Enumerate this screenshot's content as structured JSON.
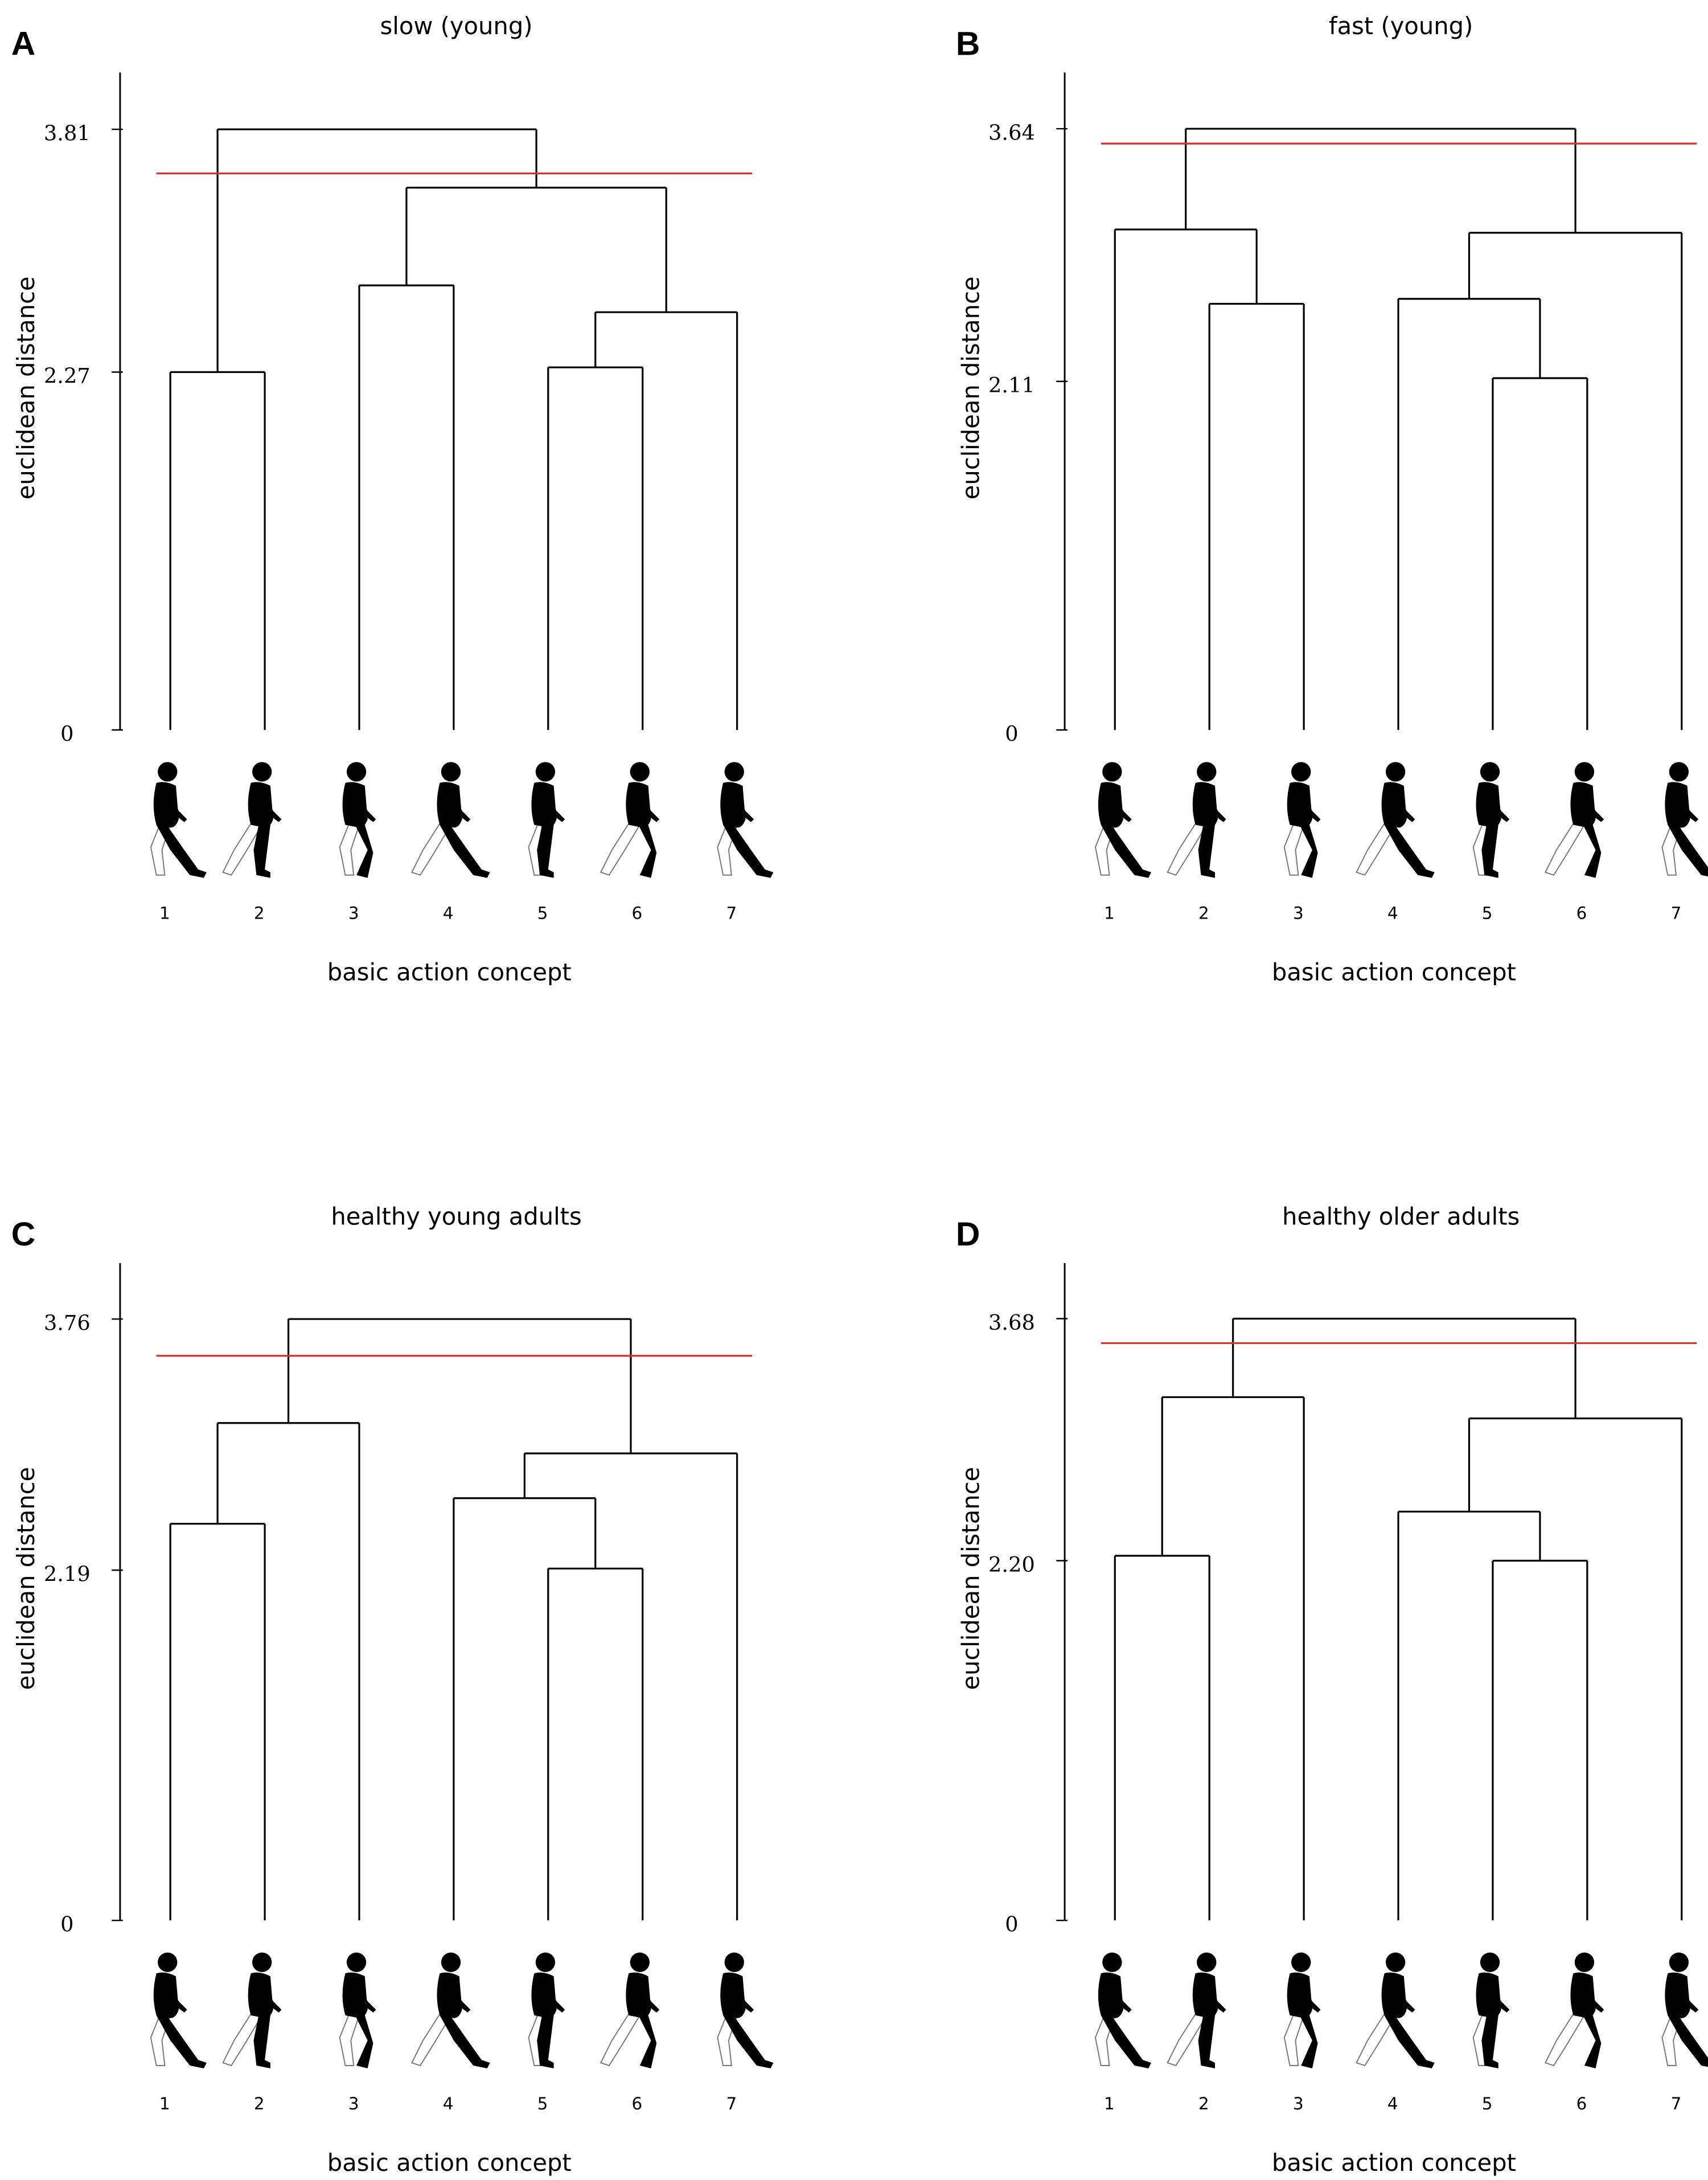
{
  "chart_data": [
    {
      "type": "dendrogram",
      "panel": "A",
      "title": "slow (young)",
      "y_label": "euclidean distance",
      "x_label": "basic action concept",
      "categories": [
        "1",
        "2",
        "3",
        "4",
        "5",
        "6",
        "7"
      ],
      "merges": [
        [
          0,
          1,
          2.27
        ],
        [
          4,
          5,
          2.3
        ],
        [
          8,
          6,
          2.65
        ],
        [
          2,
          3,
          2.82
        ],
        [
          10,
          9,
          3.44
        ],
        [
          7,
          11,
          3.81
        ]
      ],
      "threshold": 3.53,
      "ylim": [
        0,
        4.17
      ],
      "yticks": [
        0,
        2.27,
        3.81
      ],
      "line_color": "#000000",
      "threshold_color": "#d9302c"
    },
    {
      "type": "dendrogram",
      "panel": "B",
      "title": "fast (young)",
      "y_label": "euclidean distance",
      "x_label": "basic action concept",
      "categories": [
        "1",
        "2",
        "3",
        "4",
        "5",
        "6",
        "7"
      ],
      "merges": [
        [
          4,
          5,
          2.13
        ],
        [
          1,
          2,
          2.58
        ],
        [
          3,
          7,
          2.61
        ],
        [
          9,
          6,
          3.01
        ],
        [
          0,
          8,
          3.03
        ],
        [
          11,
          10,
          3.64
        ]
      ],
      "threshold": 3.55,
      "ylim": [
        0,
        3.98
      ],
      "yticks": [
        0,
        2.11,
        3.64
      ],
      "line_color": "#000000",
      "threshold_color": "#d9302c"
    },
    {
      "type": "dendrogram",
      "panel": "C",
      "title": "healthy young adults",
      "y_label": "euclidean distance",
      "x_label": "basic action concept",
      "categories": [
        "1",
        "2",
        "3",
        "4",
        "5",
        "6",
        "7"
      ],
      "merges": [
        [
          4,
          5,
          2.2
        ],
        [
          0,
          1,
          2.48
        ],
        [
          3,
          7,
          2.64
        ],
        [
          9,
          6,
          2.92
        ],
        [
          8,
          2,
          3.11
        ],
        [
          11,
          10,
          3.76
        ]
      ],
      "threshold": 3.53,
      "ylim": [
        0,
        4.11
      ],
      "yticks": [
        0,
        2.19,
        3.76
      ],
      "line_color": "#000000",
      "threshold_color": "#d9302c"
    },
    {
      "type": "dendrogram",
      "panel": "D",
      "title": "healthy older adults",
      "y_label": "euclidean distance",
      "x_label": "basic action concept",
      "categories": [
        "1",
        "2",
        "3",
        "4",
        "5",
        "6",
        "7"
      ],
      "merges": [
        [
          4,
          5,
          2.2
        ],
        [
          0,
          1,
          2.23
        ],
        [
          3,
          7,
          2.5
        ],
        [
          9,
          6,
          3.07
        ],
        [
          8,
          2,
          3.2
        ],
        [
          11,
          10,
          3.68
        ]
      ],
      "threshold": 3.53,
      "ylim": [
        0,
        4.02
      ],
      "yticks": [
        0,
        {
          "value": 2.2,
          "label": "2.20"
        },
        3.68
      ],
      "line_color": "#000000",
      "threshold_color": "#d9302c"
    }
  ]
}
